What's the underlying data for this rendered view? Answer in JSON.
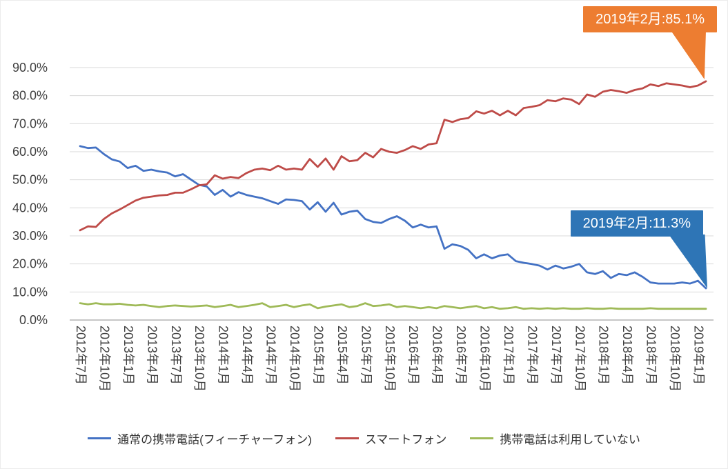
{
  "annotations": [
    {
      "label": "2019年2月:85.1%",
      "color": "#ED7D31"
    },
    {
      "label": "2019年2月:11.3%",
      "color": "#2E75B6"
    }
  ],
  "chart_data": {
    "type": "line",
    "title": "",
    "xlabel": "",
    "ylabel": "",
    "ylim": [
      0,
      90
    ],
    "grid": true,
    "legend_position": "bottom",
    "x_label_every": 3,
    "y_ticks": [
      "0.0%",
      "10.0%",
      "20.0%",
      "30.0%",
      "40.0%",
      "50.0%",
      "60.0%",
      "70.0%",
      "80.0%",
      "90.0%"
    ],
    "x_labels": [
      "2012年7月",
      "2012年10月",
      "2013年1月",
      "2013年4月",
      "2013年7月",
      "2013年10月",
      "2014年1月",
      "2014年4月",
      "2014年7月",
      "2014年10月",
      "2015年1月",
      "2015年4月",
      "2015年7月",
      "2015年10月",
      "2016年1月",
      "2016年4月",
      "2016年7月",
      "2016年10月",
      "2017年1月",
      "2017年4月",
      "2017年7月",
      "2017年10月",
      "2018年1月",
      "2018年4月",
      "2018年7月",
      "2018年10月",
      "2019年1月"
    ],
    "colors": {
      "grid": "#D9D9D9",
      "axis": "#B3B3B3",
      "tick_text": "#404040"
    },
    "series": [
      {
        "name": "通常の携帯電話(フィーチャーフォン)",
        "color": "#4472C4",
        "values": [
          62.0,
          61.3,
          61.5,
          59.2,
          57.3,
          56.5,
          54.2,
          55.0,
          53.2,
          53.6,
          53.0,
          52.6,
          51.2,
          52.0,
          50.1,
          48.2,
          47.6,
          44.6,
          46.4,
          44.0,
          45.6,
          44.6,
          44.0,
          43.4,
          42.4,
          41.4,
          43.0,
          42.8,
          42.4,
          39.4,
          42.0,
          38.6,
          41.8,
          37.6,
          38.6,
          39.0,
          36.0,
          35.0,
          34.6,
          36.0,
          37.0,
          35.4,
          33.0,
          34.0,
          33.0,
          33.4,
          25.4,
          27.0,
          26.4,
          25.0,
          22.0,
          23.4,
          22.0,
          23.0,
          23.4,
          21.0,
          20.4,
          20.0,
          19.4,
          18.0,
          19.4,
          18.4,
          19.0,
          20.0,
          17.0,
          16.4,
          17.4,
          15.0,
          16.4,
          16.0,
          17.0,
          15.4,
          13.4,
          13.0,
          13.0,
          13.0,
          13.4,
          13.0,
          14.0,
          11.3
        ]
      },
      {
        "name": "スマートフォン",
        "color": "#BE4B48",
        "values": [
          32.0,
          33.4,
          33.2,
          36.0,
          38.0,
          39.4,
          41.0,
          42.6,
          43.6,
          44.0,
          44.4,
          44.6,
          45.4,
          45.4,
          46.6,
          48.0,
          48.4,
          51.6,
          50.4,
          51.0,
          50.6,
          52.4,
          53.6,
          54.0,
          53.4,
          55.0,
          53.6,
          54.0,
          53.6,
          57.4,
          54.6,
          57.6,
          53.6,
          58.4,
          56.6,
          57.0,
          59.6,
          58.0,
          61.0,
          60.0,
          59.6,
          60.6,
          62.0,
          61.0,
          62.6,
          63.0,
          71.4,
          70.6,
          71.6,
          72.0,
          74.4,
          73.6,
          74.6,
          73.0,
          74.6,
          73.0,
          75.6,
          76.0,
          76.6,
          78.4,
          78.0,
          79.0,
          78.6,
          77.0,
          80.4,
          79.6,
          81.4,
          82.0,
          81.6,
          81.0,
          82.0,
          82.6,
          84.0,
          83.4,
          84.4,
          84.0,
          83.6,
          83.0,
          83.6,
          85.1
        ]
      },
      {
        "name": "携帯電話は利用していない",
        "color": "#9FBA58",
        "values": [
          6.0,
          5.6,
          6.0,
          5.6,
          5.6,
          5.8,
          5.4,
          5.2,
          5.4,
          5.0,
          4.6,
          5.0,
          5.2,
          5.0,
          4.8,
          5.0,
          5.2,
          4.6,
          5.0,
          5.4,
          4.6,
          5.0,
          5.4,
          6.0,
          4.6,
          5.0,
          5.4,
          4.6,
          5.2,
          5.6,
          4.2,
          4.8,
          5.2,
          5.6,
          4.6,
          5.0,
          6.0,
          5.0,
          5.2,
          5.6,
          4.6,
          5.0,
          4.6,
          4.2,
          4.6,
          4.2,
          5.0,
          4.6,
          4.2,
          4.6,
          5.0,
          4.2,
          4.6,
          4.0,
          4.2,
          4.6,
          4.0,
          4.2,
          4.0,
          4.2,
          4.0,
          4.2,
          4.0,
          4.0,
          4.2,
          4.0,
          4.0,
          4.2,
          4.0,
          4.0,
          4.0,
          4.0,
          4.2,
          4.0,
          4.0,
          4.0,
          4.0,
          4.0,
          4.0,
          4.0
        ]
      }
    ]
  }
}
